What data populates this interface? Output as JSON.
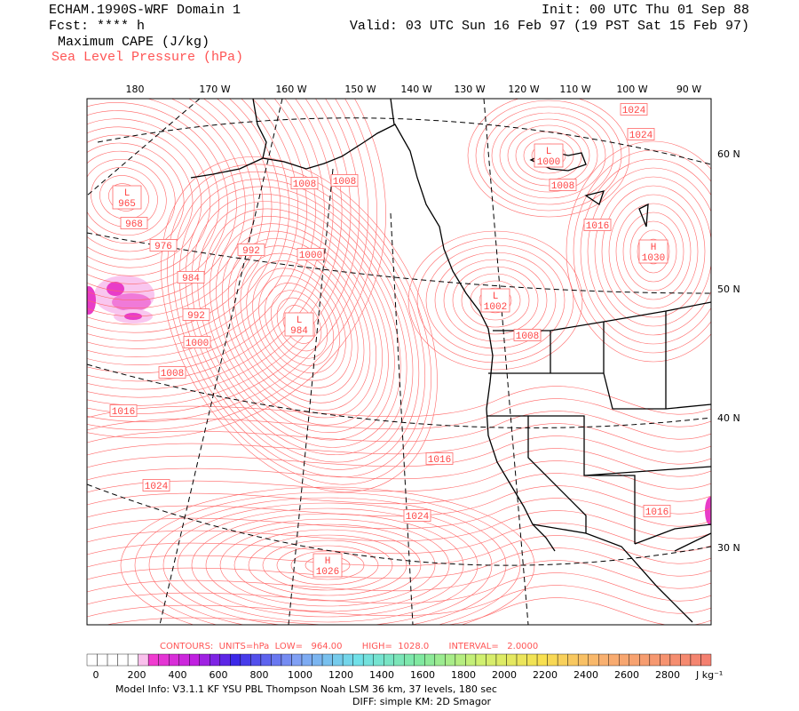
{
  "header": {
    "title": "ECHAM.1990S-WRF Domain 1",
    "forecast": "Fcst: **** h",
    "field": "Maximum CAPE (J/kg)",
    "contour_field": "Sea Level Pressure (hPa)",
    "init": "Init: 00 UTC Thu 01 Sep 88",
    "valid": "Valid: 03 UTC Sun 16 Feb 97 (19 PST Sat 15 Feb 97)"
  },
  "map": {
    "longitude_labels": [
      "180",
      "170 W",
      "160 W",
      "150 W",
      "140 W",
      "130 W",
      "120 W",
      "110 W",
      "100 W",
      "90 W"
    ],
    "latitude_labels": [
      "60 N",
      "50 N",
      "40 N",
      "30 N"
    ],
    "contour_labels": [
      968,
      976,
      984,
      992,
      1000,
      1008,
      1016,
      1024,
      992,
      1000,
      1008,
      1008,
      1008,
      1008,
      1016,
      1024,
      1024,
      1016,
      1024,
      1016
    ],
    "pressure_centers": [
      {
        "symbol": "L",
        "value": 965
      },
      {
        "symbol": "L",
        "value": 984
      },
      {
        "symbol": "L",
        "value": 1002
      },
      {
        "symbol": "L",
        "value": 1000
      },
      {
        "symbol": "H",
        "value": 1030
      },
      {
        "symbol": "H",
        "value": 1026
      }
    ]
  },
  "footer": {
    "contours": "CONTOURS:  UNITS=hPa  LOW=   964.00       HIGH=  1028.0       INTERVAL=   2.0000",
    "colorbar_labels": [
      0,
      200,
      400,
      600,
      800,
      1000,
      1200,
      1400,
      1600,
      1800,
      2000,
      2200,
      2400,
      2600,
      2800
    ],
    "colorbar_unit": "J kg⁻¹",
    "model_info": "Model Info: V3.1.1    KF     YSU PBL   Thompson     Noah LSM   36 km,    37 levels,   180 sec",
    "diff": "DIFF: simple KM: 2D Smagor"
  }
}
